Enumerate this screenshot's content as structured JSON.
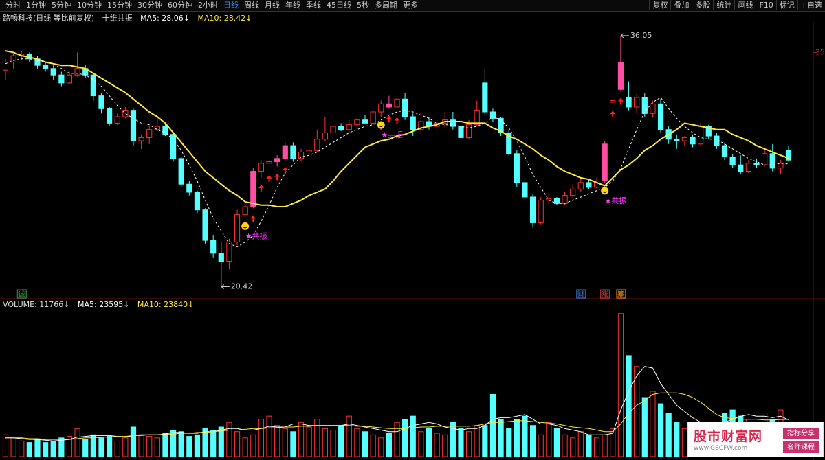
{
  "toolbar": {
    "periods": [
      "分时",
      "1分钟",
      "5分钟",
      "10分钟",
      "15分钟",
      "30分钟",
      "60分钟",
      "2小时",
      "日线",
      "周线",
      "月线",
      "年线",
      "季线",
      "45日线",
      "5秒",
      "多周期",
      "更多"
    ],
    "active": "日线",
    "tools": [
      "复权",
      "叠加",
      "多股",
      "统计",
      "画线",
      "F10",
      "标记",
      "+自选"
    ]
  },
  "watermark": {
    "title": "股市财富网",
    "url": "www.GSCFW.com",
    "tags": [
      "指标分享",
      "名师课程"
    ]
  },
  "chart_data": {
    "type": "candlestick",
    "title": "路畅科技(日线 等比前复权)",
    "indicator": "十维共振",
    "ylim": [
      19.8,
      36.9
    ],
    "yticks": [
      35
    ],
    "up_color": "#ff3232",
    "down_color": "#54ffff",
    "highlight_color": "#ff4fa3",
    "candles": [
      [
        33.9,
        34.6,
        33.3,
        34.4
      ],
      [
        34.4,
        34.9,
        34.0,
        34.8
      ],
      [
        34.8,
        35.1,
        34.5,
        34.9
      ],
      [
        34.9,
        35.0,
        34.4,
        34.6
      ],
      [
        34.6,
        34.8,
        34.0,
        34.2
      ],
      [
        34.2,
        34.4,
        33.8,
        34.0
      ],
      [
        34.0,
        34.2,
        33.3,
        33.6
      ],
      [
        33.6,
        33.8,
        32.9,
        33.1
      ],
      [
        33.1,
        33.8,
        33.0,
        33.6
      ],
      [
        33.6,
        35.0,
        33.5,
        34.0
      ],
      [
        34.0,
        34.2,
        33.4,
        33.6
      ],
      [
        33.6,
        33.7,
        32.0,
        32.3
      ],
      [
        32.3,
        32.5,
        31.2,
        31.5
      ],
      [
        31.5,
        31.6,
        30.4,
        30.6
      ],
      [
        30.6,
        31.2,
        30.5,
        31.0
      ],
      [
        31.0,
        31.6,
        30.9,
        31.4
      ],
      [
        31.4,
        31.5,
        29.2,
        29.5
      ],
      [
        29.5,
        29.9,
        29.0,
        29.7
      ],
      [
        29.7,
        30.4,
        29.3,
        30.2
      ],
      [
        30.2,
        31.0,
        30.1,
        30.4
      ],
      [
        30.4,
        30.6,
        29.8,
        29.9
      ],
      [
        29.9,
        30.0,
        28.2,
        28.4
      ],
      [
        28.4,
        28.5,
        26.6,
        26.8
      ],
      [
        26.8,
        27.0,
        26.1,
        26.3
      ],
      [
        26.3,
        26.4,
        25.0,
        25.2
      ],
      [
        25.2,
        25.3,
        23.1,
        23.3
      ],
      [
        23.3,
        23.6,
        22.2,
        22.5
      ],
      [
        22.5,
        23.2,
        20.42,
        22.0
      ],
      [
        22.0,
        23.4,
        21.5,
        23.2
      ],
      [
        23.2,
        25.2,
        23.0,
        24.9
      ],
      [
        24.9,
        25.5,
        24.7,
        25.4
      ],
      [
        25.4,
        27.8,
        25.3,
        27.6
      ],
      [
        27.6,
        28.3,
        27.2,
        28.1
      ],
      [
        28.1,
        28.4,
        27.8,
        28.2
      ],
      [
        28.2,
        28.6,
        27.9,
        28.4
      ],
      [
        28.4,
        29.4,
        28.3,
        29.2
      ],
      [
        29.2,
        29.4,
        28.2,
        28.4
      ],
      [
        28.4,
        29.0,
        28.2,
        28.8
      ],
      [
        28.8,
        29.1,
        28.6,
        28.9
      ],
      [
        28.9,
        30.2,
        28.8,
        29.6
      ],
      [
        29.6,
        31.0,
        29.5,
        30.0
      ],
      [
        30.0,
        31.3,
        29.8,
        30.4
      ],
      [
        30.4,
        30.6,
        30.1,
        30.2
      ],
      [
        30.2,
        30.8,
        30.0,
        30.5
      ],
      [
        30.5,
        31.0,
        30.2,
        30.8
      ],
      [
        30.8,
        31.1,
        30.6,
        30.6
      ],
      [
        30.6,
        31.6,
        30.4,
        31.3
      ],
      [
        31.3,
        32.0,
        31.0,
        31.8
      ],
      [
        31.8,
        32.3,
        31.5,
        31.6
      ],
      [
        31.6,
        32.7,
        31.4,
        32.1
      ],
      [
        32.1,
        32.5,
        30.8,
        31.0
      ],
      [
        31.0,
        31.2,
        29.8,
        30.2
      ],
      [
        30.2,
        31.2,
        29.9,
        30.7
      ],
      [
        30.7,
        31.0,
        30.2,
        30.4
      ],
      [
        30.4,
        30.8,
        30.0,
        30.6
      ],
      [
        30.6,
        31.3,
        30.3,
        30.8
      ],
      [
        30.8,
        31.3,
        30.2,
        30.4
      ],
      [
        30.4,
        30.6,
        29.4,
        29.7
      ],
      [
        29.7,
        30.8,
        29.6,
        30.5
      ],
      [
        30.5,
        32.0,
        30.4,
        31.4
      ],
      [
        33.1,
        34.0,
        31.1,
        31.3
      ],
      [
        31.3,
        31.5,
        30.7,
        30.9
      ],
      [
        30.9,
        31.0,
        29.8,
        30.0
      ],
      [
        30.0,
        30.2,
        28.6,
        28.7
      ],
      [
        28.7,
        28.9,
        26.6,
        26.9
      ],
      [
        26.9,
        27.2,
        25.6,
        26.0
      ],
      [
        26.0,
        26.2,
        24.1,
        24.4
      ],
      [
        24.4,
        26.0,
        24.3,
        25.8
      ],
      [
        25.8,
        26.3,
        25.5,
        25.9
      ],
      [
        25.9,
        26.0,
        25.5,
        25.6
      ],
      [
        25.6,
        26.3,
        25.5,
        26.1
      ],
      [
        26.1,
        26.8,
        25.9,
        26.5
      ],
      [
        26.5,
        27.2,
        26.3,
        26.9
      ],
      [
        26.9,
        27.1,
        26.5,
        26.6
      ],
      [
        26.6,
        27.2,
        26.5,
        27.0
      ],
      [
        27.0,
        29.5,
        26.9,
        29.3
      ],
      [
        31.9,
        32.1,
        31.8,
        32.0
      ],
      [
        32.7,
        36.05,
        32.6,
        34.4
      ],
      [
        32.2,
        33.2,
        31.4,
        31.6
      ],
      [
        31.6,
        32.4,
        31.2,
        32.2
      ],
      [
        32.2,
        32.5,
        31.0,
        31.2
      ],
      [
        31.2,
        32.0,
        31.0,
        31.8
      ],
      [
        31.8,
        32.1,
        30.0,
        30.2
      ],
      [
        30.2,
        30.4,
        29.3,
        29.6
      ],
      [
        29.6,
        29.9,
        29.0,
        29.5
      ],
      [
        29.5,
        29.8,
        29.2,
        29.7
      ],
      [
        29.7,
        29.9,
        29.1,
        29.3
      ],
      [
        29.3,
        30.6,
        29.2,
        30.4
      ],
      [
        30.4,
        30.5,
        29.6,
        29.8
      ],
      [
        29.8,
        30.0,
        29.0,
        29.2
      ],
      [
        29.2,
        29.4,
        28.3,
        28.5
      ],
      [
        28.5,
        28.7,
        27.8,
        28.0
      ],
      [
        28.0,
        28.6,
        27.4,
        27.6
      ],
      [
        27.6,
        28.3,
        27.5,
        28.1
      ],
      [
        28.1,
        28.4,
        27.8,
        28.0
      ],
      [
        28.0,
        29.0,
        27.9,
        28.7
      ],
      [
        28.7,
        29.3,
        27.6,
        27.8
      ],
      [
        27.8,
        28.3,
        27.4,
        28.1
      ],
      [
        28.9,
        29.2,
        28.2,
        28.3
      ]
    ],
    "highlight": [
      31,
      34,
      35,
      48,
      75,
      77
    ],
    "series": [
      {
        "name": "MA5: 28.06↓",
        "color": "#ffffff",
        "dashed": true,
        "values": [
          34.3,
          34.5,
          34.6,
          34.6,
          34.5,
          34.4,
          34.3,
          34.0,
          33.7,
          33.7,
          33.6,
          33.3,
          32.9,
          32.3,
          31.7,
          31.2,
          30.9,
          30.6,
          30.5,
          30.2,
          30.0,
          29.6,
          28.9,
          28.0,
          27.0,
          25.8,
          24.7,
          23.9,
          23.1,
          22.9,
          23.2,
          23.6,
          24.5,
          25.5,
          26.6,
          27.5,
          28.0,
          28.5,
          28.6,
          28.8,
          29.1,
          29.4,
          29.7,
          30.0,
          30.2,
          30.4,
          30.5,
          30.8,
          31.1,
          31.3,
          31.4,
          31.3,
          31.1,
          30.9,
          30.6,
          30.5,
          30.5,
          30.4,
          30.3,
          30.4,
          30.6,
          31.0,
          30.8,
          30.3,
          29.5,
          28.5,
          27.4,
          26.6,
          25.8,
          25.6,
          25.6,
          25.8,
          26.0,
          26.2,
          26.4,
          26.6,
          27.0,
          27.8,
          29.0,
          30.2,
          31.3,
          31.9,
          32.2,
          31.5,
          30.9,
          30.4,
          30.0,
          29.7,
          29.6,
          29.6,
          29.3,
          29.0,
          28.7,
          28.4,
          28.2,
          28.0,
          28.0,
          28.1,
          28.06
        ]
      },
      {
        "name": "MA10: 28.42↓",
        "color": "#ffeb3b",
        "dashed": false,
        "values": [
          35.1,
          35.0,
          34.8,
          34.7,
          34.6,
          34.4,
          34.3,
          34.2,
          34.2,
          34.1,
          34.0,
          33.7,
          33.4,
          33.1,
          32.8,
          32.5,
          32.1,
          31.7,
          31.3,
          31.0,
          30.6,
          30.0,
          29.4,
          28.8,
          28.2,
          27.6,
          27.2,
          26.8,
          26.4,
          26.1,
          25.7,
          25.6,
          25.5,
          25.5,
          25.4,
          25.4,
          25.6,
          25.8,
          26.1,
          26.3,
          26.5,
          27.0,
          27.6,
          28.1,
          28.6,
          29.1,
          29.3,
          29.5,
          29.6,
          29.8,
          29.9,
          30.1,
          30.3,
          30.4,
          30.5,
          30.7,
          30.7,
          30.7,
          30.6,
          30.6,
          30.6,
          30.3,
          30.1,
          29.8,
          29.6,
          29.3,
          29.0,
          28.6,
          28.3,
          27.9,
          27.6,
          27.4,
          27.2,
          27.1,
          26.9,
          26.7,
          27.2,
          27.7,
          28.0,
          28.4,
          28.9,
          29.2,
          29.6,
          29.9,
          30.2,
          30.6,
          30.5,
          30.4,
          30.3,
          30.2,
          30.2,
          29.9,
          29.7,
          29.5,
          29.2,
          29.0,
          28.8,
          28.6,
          28.42
        ]
      }
    ],
    "annotations": {
      "high": {
        "index": 77,
        "value": 36.05
      },
      "low": {
        "index": 27,
        "value": 20.42
      }
    },
    "signals": {
      "arrows": [
        31,
        32,
        33,
        34,
        35,
        47,
        48,
        49,
        76,
        77
      ],
      "smileys": [
        30,
        47,
        75
      ],
      "resonance": [
        30,
        47,
        75
      ],
      "resonance_label": "★共振"
    },
    "markers": [
      {
        "index": 2,
        "label": "诚",
        "color": "#2e9a4a"
      },
      {
        "index": 72,
        "label": "财",
        "color": "#3b78d8"
      },
      {
        "index": 75,
        "label": "涨",
        "color": "#e03030"
      },
      {
        "index": 77,
        "label": "筹",
        "color": "#e08a20"
      }
    ],
    "volume": {
      "name": "VOLUME: 11766↓",
      "ylim": [
        0,
        95000
      ],
      "values": [
        14000,
        12000,
        10000,
        9000,
        11000,
        9000,
        10000,
        12000,
        13000,
        18000,
        11000,
        14000,
        12000,
        13000,
        10000,
        12000,
        19000,
        14000,
        13000,
        12000,
        15000,
        17000,
        16000,
        13000,
        14000,
        18000,
        17000,
        19000,
        22000,
        16000,
        12000,
        14000,
        24000,
        26000,
        20000,
        18000,
        16000,
        22000,
        19000,
        24000,
        18000,
        17000,
        20000,
        26000,
        18000,
        16000,
        14000,
        12000,
        15000,
        22000,
        24000,
        26000,
        16000,
        18000,
        15000,
        14000,
        22000,
        18000,
        16000,
        20000,
        20000,
        40000,
        24000,
        18000,
        24000,
        26000,
        20000,
        14000,
        22000,
        18000,
        14000,
        12000,
        16000,
        14000,
        12000,
        14000,
        18000,
        92000,
        65000,
        58000,
        38000,
        42000,
        34000,
        28000,
        22000,
        18000,
        16000,
        14000,
        12000,
        10000,
        28000,
        30000,
        26000,
        24000,
        22000,
        28000,
        24000,
        30000,
        11766
      ],
      "series": [
        {
          "name": "MA5: 23595↓",
          "color": "#ffffff",
          "values": [
            12000,
            12000,
            11500,
            11000,
            11000,
            10500,
            10000,
            10500,
            11000,
            12500,
            13000,
            13500,
            13500,
            13500,
            13000,
            12500,
            13500,
            14000,
            14000,
            14000,
            14500,
            15500,
            15500,
            15000,
            15000,
            16000,
            16000,
            17000,
            18000,
            18000,
            17000,
            17000,
            18000,
            19500,
            19000,
            19000,
            21000,
            21000,
            20000,
            20000,
            20000,
            20000,
            20000,
            21000,
            20000,
            19000,
            18000,
            17000,
            16000,
            16000,
            18000,
            20000,
            21000,
            22000,
            21000,
            19000,
            18000,
            17000,
            18000,
            18000,
            20000,
            24000,
            25000,
            25000,
            26000,
            27000,
            24000,
            21000,
            21000,
            20000,
            18000,
            17000,
            16000,
            14000,
            14000,
            14000,
            15000,
            30000,
            42000,
            52000,
            58000,
            57000,
            47000,
            40000,
            33000,
            29000,
            25000,
            22000,
            18000,
            15000,
            22000,
            24000,
            26000,
            27000,
            26000,
            26000,
            25000,
            26000,
            23595
          ]
        },
        {
          "name": "MA10: 23840↓",
          "color": "#ffeb3b",
          "values": [
            12000,
            12000,
            12000,
            11500,
            11500,
            11000,
            11000,
            11000,
            11000,
            11500,
            12000,
            12000,
            12500,
            12500,
            13000,
            13000,
            13500,
            13500,
            14000,
            14000,
            14000,
            14500,
            15000,
            15000,
            15500,
            15500,
            16000,
            16500,
            17000,
            17000,
            17500,
            18000,
            18000,
            18500,
            18500,
            19000,
            19000,
            19500,
            19500,
            20000,
            20000,
            20000,
            20000,
            20000,
            19500,
            19500,
            19000,
            18500,
            18000,
            18000,
            18000,
            18500,
            19000,
            19000,
            19500,
            19500,
            19500,
            19500,
            19500,
            20000,
            21000,
            22000,
            22000,
            22500,
            23000,
            23000,
            22500,
            22000,
            21500,
            21000,
            20000,
            19000,
            18500,
            18000,
            17000,
            16000,
            16000,
            21000,
            28000,
            33000,
            36000,
            40000,
            41000,
            41000,
            41000,
            40000,
            38000,
            35000,
            31000,
            27000,
            25000,
            24500,
            24000,
            24000,
            24000,
            23500,
            23500,
            23800,
            23840
          ]
        }
      ]
    }
  }
}
